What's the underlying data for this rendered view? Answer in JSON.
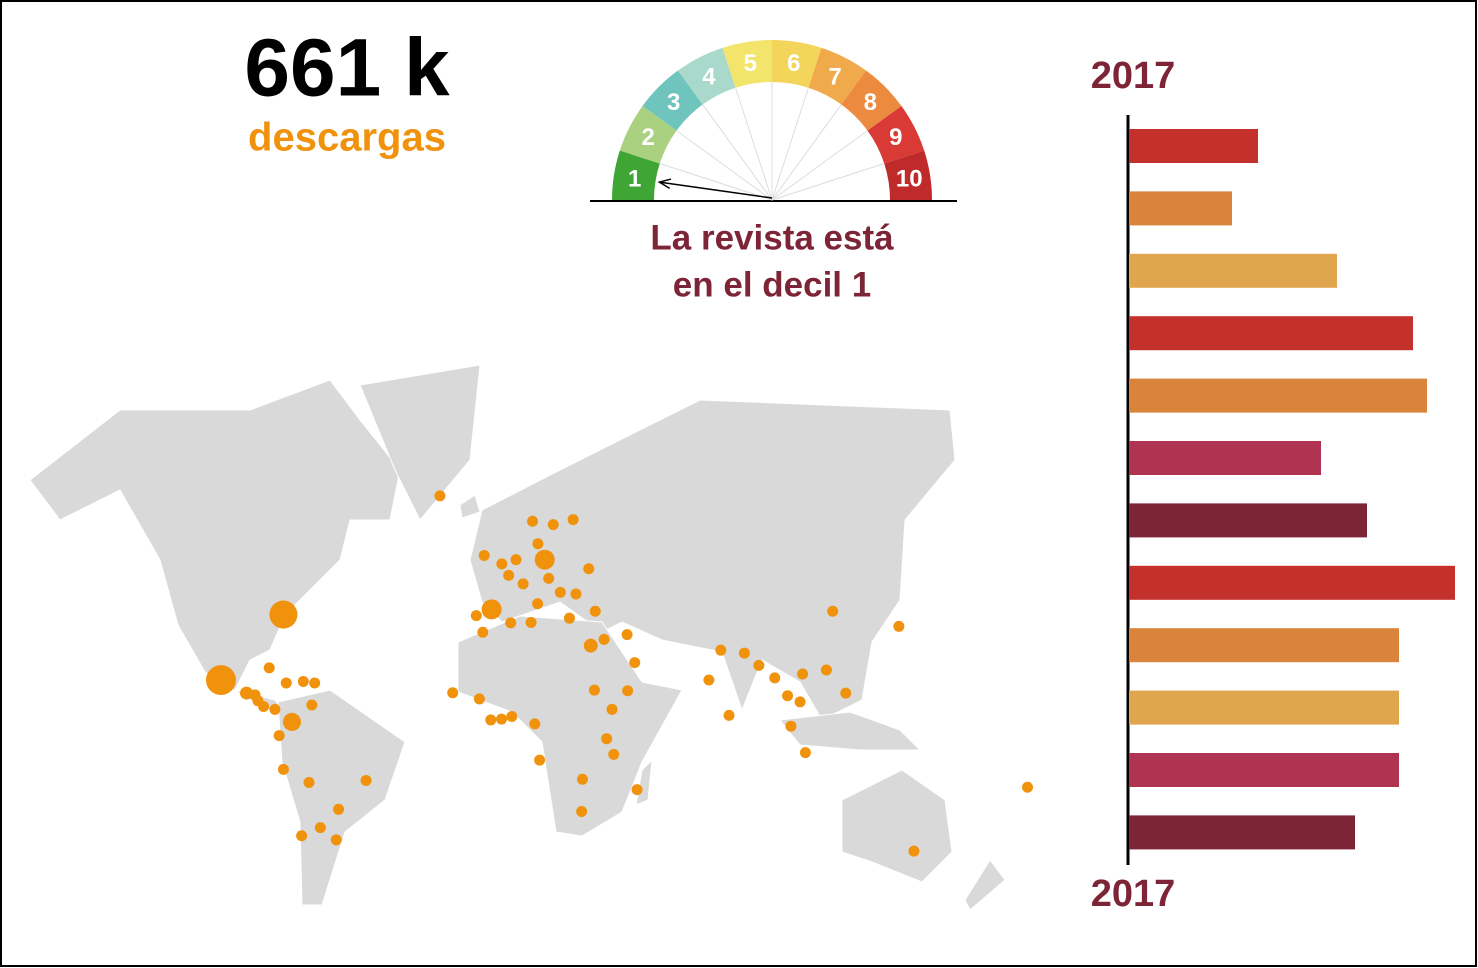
{
  "headline": {
    "value": "661 k",
    "label": "descargas"
  },
  "gauge": {
    "labels": [
      1,
      2,
      3,
      4,
      5,
      6,
      7,
      8,
      9,
      10
    ],
    "colors": [
      "#3fa535",
      "#a9d17f",
      "#6fc4bd",
      "#a9d9cb",
      "#f3e56b",
      "#f4d55c",
      "#f0a94b",
      "#ec8b40",
      "#da3a35",
      "#bf2a2a"
    ],
    "selected": 1,
    "caption": [
      "La revista está",
      "en el decil 1"
    ]
  },
  "map": {
    "color": "#f0920c",
    "points": [
      {
        "lon": -77,
        "lat": 39,
        "size": 6.5
      },
      {
        "lon": -99,
        "lat": 19,
        "size": 7.4
      },
      {
        "lon": -74,
        "lat": 4.6,
        "size": 2.7
      },
      {
        "lon": -3.7,
        "lat": 40.4,
        "size": 3.3
      },
      {
        "lon": 15,
        "lat": 52.4,
        "size": 3.3
      },
      {
        "lon": -82,
        "lat": 23,
        "size": 1
      },
      {
        "lon": -76,
        "lat": 18,
        "size": 1
      },
      {
        "lon": -70,
        "lat": 18.5,
        "size": 1
      },
      {
        "lon": -66,
        "lat": 18,
        "size": 1
      },
      {
        "lon": -90,
        "lat": 14.6,
        "size": 1.4
      },
      {
        "lon": -87,
        "lat": 14,
        "size": 1
      },
      {
        "lon": -84,
        "lat": 10,
        "size": 1
      },
      {
        "lon": -80,
        "lat": 9,
        "size": 1
      },
      {
        "lon": -86,
        "lat": 12,
        "size": 1
      },
      {
        "lon": -67,
        "lat": 10.5,
        "size": 1
      },
      {
        "lon": -78.5,
        "lat": -0.2,
        "size": 1
      },
      {
        "lon": -77,
        "lat": -12,
        "size": 1
      },
      {
        "lon": -68,
        "lat": -16.5,
        "size": 1
      },
      {
        "lon": -47.9,
        "lat": -15.8,
        "size": 1
      },
      {
        "lon": -57.6,
        "lat": -25.3,
        "size": 1
      },
      {
        "lon": -70.6,
        "lat": -33.4,
        "size": 1
      },
      {
        "lon": -58.4,
        "lat": -34.6,
        "size": 1
      },
      {
        "lon": -64,
        "lat": -31,
        "size": 1
      },
      {
        "lon": -0.1,
        "lat": 51.5,
        "size": 1
      },
      {
        "lon": -6.3,
        "lat": 53.3,
        "size": 1
      },
      {
        "lon": 2.3,
        "lat": 48.9,
        "size": 1
      },
      {
        "lon": -9.1,
        "lat": 38.7,
        "size": 1
      },
      {
        "lon": 12.5,
        "lat": 41.9,
        "size": 1
      },
      {
        "lon": 4.9,
        "lat": 52.4,
        "size": 1
      },
      {
        "lon": 18,
        "lat": 59.3,
        "size": 1
      },
      {
        "lon": 10.7,
        "lat": 59.9,
        "size": 1
      },
      {
        "lon": 25,
        "lat": 60.2,
        "size": 1
      },
      {
        "lon": 30.5,
        "lat": 50.4,
        "size": 1
      },
      {
        "lon": 26,
        "lat": 44.4,
        "size": 1
      },
      {
        "lon": 23.7,
        "lat": 38,
        "size": 1
      },
      {
        "lon": 32.8,
        "lat": 39.9,
        "size": 1
      },
      {
        "lon": 16.4,
        "lat": 48.2,
        "size": 1
      },
      {
        "lon": 7.4,
        "lat": 46.9,
        "size": 1
      },
      {
        "lon": 20.5,
        "lat": 44.8,
        "size": 1
      },
      {
        "lon": 12.6,
        "lat": 55.7,
        "size": 1
      },
      {
        "lon": -21.9,
        "lat": 64.1,
        "size": 1
      },
      {
        "lon": -6.8,
        "lat": 34,
        "size": 1
      },
      {
        "lon": 3,
        "lat": 36.7,
        "size": 1
      },
      {
        "lon": 10.2,
        "lat": 36.8,
        "size": 1
      },
      {
        "lon": 31.2,
        "lat": 30,
        "size": 1.6
      },
      {
        "lon": -17.4,
        "lat": 14.7,
        "size": 1
      },
      {
        "lon": 3.4,
        "lat": 6.5,
        "size": 1
      },
      {
        "lon": -0.2,
        "lat": 5.6,
        "size": 1
      },
      {
        "lon": -4,
        "lat": 5.3,
        "size": 1
      },
      {
        "lon": 11.5,
        "lat": 3.9,
        "size": 1
      },
      {
        "lon": 38.7,
        "lat": 9,
        "size": 1
      },
      {
        "lon": 36.8,
        "lat": -1.3,
        "size": 1
      },
      {
        "lon": 32.5,
        "lat": 15.6,
        "size": 1
      },
      {
        "lon": -8,
        "lat": 12.6,
        "size": 1
      },
      {
        "lon": 13.2,
        "lat": -8.8,
        "size": 1
      },
      {
        "lon": 28.3,
        "lat": -15.4,
        "size": 1
      },
      {
        "lon": 28,
        "lat": -26,
        "size": 1
      },
      {
        "lon": 47.5,
        "lat": -18.9,
        "size": 1
      },
      {
        "lon": 39.3,
        "lat": -6.8,
        "size": 1
      },
      {
        "lon": 46.7,
        "lat": 24.7,
        "size": 1
      },
      {
        "lon": 35.9,
        "lat": 31.9,
        "size": 1
      },
      {
        "lon": 44.2,
        "lat": 15.4,
        "size": 1
      },
      {
        "lon": 44,
        "lat": 33.3,
        "size": 1
      },
      {
        "lon": 77,
        "lat": 28.6,
        "size": 1
      },
      {
        "lon": 72.8,
        "lat": 19,
        "size": 1
      },
      {
        "lon": 90.4,
        "lat": 23.8,
        "size": 1
      },
      {
        "lon": 85.3,
        "lat": 27.7,
        "size": 1
      },
      {
        "lon": 79.9,
        "lat": 6.9,
        "size": 1
      },
      {
        "lon": 100.5,
        "lat": 13.7,
        "size": 1
      },
      {
        "lon": 105.8,
        "lat": 21,
        "size": 1
      },
      {
        "lon": 101.7,
        "lat": 3.1,
        "size": 1
      },
      {
        "lon": 106.8,
        "lat": -6.2,
        "size": 1
      },
      {
        "lon": 121,
        "lat": 14.6,
        "size": 1
      },
      {
        "lon": 116.4,
        "lat": 39.9,
        "size": 1
      },
      {
        "lon": 114.2,
        "lat": 22.3,
        "size": 1
      },
      {
        "lon": 139.7,
        "lat": 35.7,
        "size": 1
      },
      {
        "lon": 104.9,
        "lat": 11.6,
        "size": 1
      },
      {
        "lon": 96,
        "lat": 19.7,
        "size": 1
      },
      {
        "lon": 145,
        "lat": -37.8,
        "size": 1
      },
      {
        "lon": 185,
        "lat": -18.1,
        "size": 1
      }
    ]
  },
  "chart_data": {
    "type": "bar",
    "orientation": "horizontal",
    "title": "2017",
    "footer": "2017",
    "values": [
      129,
      103,
      208,
      284,
      298,
      192,
      238,
      326,
      270,
      270,
      270,
      226
    ],
    "colors": [
      "#c4302b",
      "#d9843a",
      "#e0a64e",
      "#c4302b",
      "#d9843a",
      "#b03352",
      "#7d2537",
      "#c4302b",
      "#d9843a",
      "#e0a64e",
      "#b03352",
      "#7d2537"
    ],
    "xlim": [
      0,
      330
    ]
  }
}
